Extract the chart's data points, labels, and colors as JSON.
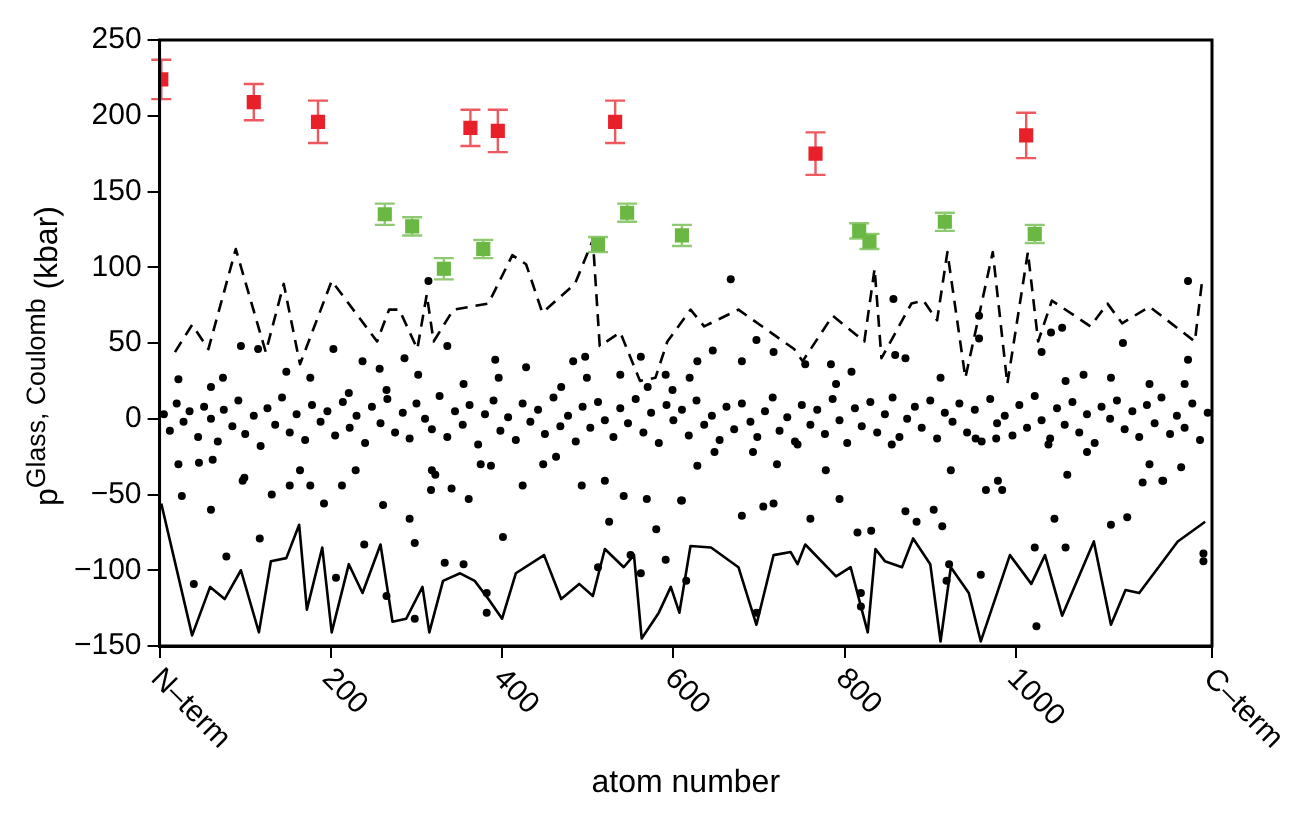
{
  "chart_data": {
    "type": "scatter",
    "xlabel": "atom number",
    "ylabel": "p$^{Glass, Coulomb}$ (kbar)",
    "xlim": [
      0,
      1229
    ],
    "xticks": [
      {
        "value": 0,
        "label": "N–term"
      },
      200,
      400,
      600,
      800,
      1000,
      {
        "value": 1229,
        "label": "C–term"
      }
    ],
    "ylim": [
      -150,
      250
    ],
    "yticks": [
      {
        "value": -150,
        "label": "−150"
      },
      {
        "value": -100,
        "label": "−100"
      },
      {
        "value": -50,
        "label": "−50"
      },
      0,
      50,
      100,
      150,
      200,
      250
    ],
    "legend": false,
    "series": [
      {
        "type": "scatter",
        "marker": "circle",
        "color": "#000000",
        "x": [
          95,
          115,
          148,
          203,
          237,
          257,
          286,
          314,
          336,
          392,
          428,
          483,
          497,
          538,
          562,
          591,
          26,
          60,
          97,
          131,
          152,
          176,
          192,
          213,
          261,
          292,
          317,
          341,
          361,
          424,
          493,
          520,
          542,
          569,
          609,
          40,
          78,
          117,
          206,
          239,
          265,
          298,
          298,
          333,
          355,
          382,
          382,
          401,
          512,
          525,
          550,
          562,
          580,
          591,
          22,
          46,
          62,
          99,
          164,
          229,
          318,
          322,
          375,
          387,
          448,
          463,
          22,
          60,
          74,
          176,
          221,
          265,
          302,
          355,
          396,
          469,
          499,
          570,
          599,
          667,
          697,
          680,
          717,
          754,
          784,
          808,
          857,
          859,
          871,
          957,
          957,
          1030,
          1041,
          1054,
          1125,
          1201,
          1201,
          628,
          646,
          619,
          790,
          912,
          1058,
          1079,
          1111,
          1156,
          1197,
          610,
          680,
          705,
          717,
          760,
          794,
          815,
          831,
          871,
          884,
          904,
          914,
          965,
          979,
          984,
          1022,
          1045,
          1060,
          1058,
          1111,
          1130,
          1148,
          1171,
          1193,
          1219,
          1219,
          1024,
          959,
          922,
          919,
          819,
          819,
          697,
          615,
          628,
          648,
          693,
          721,
          745,
          778,
          855,
          924,
          953,
          977,
          1038,
          1083,
          1156,
          1172,
          5,
          12,
          20,
          28,
          35,
          45,
          52,
          60,
          68,
          75,
          85,
          92,
          100,
          110,
          118,
          126,
          135,
          143,
          152,
          160,
          170,
          178,
          188,
          196,
          205,
          214,
          222,
          230,
          240,
          248,
          258,
          266,
          275,
          284,
          292,
          300,
          310,
          318,
          327,
          336,
          345,
          354,
          362,
          372,
          380,
          390,
          398,
          407,
          416,
          424,
          433,
          442,
          450,
          460,
          468,
          477,
          486,
          494,
          503,
          512,
          520,
          530,
          538,
          547,
          556,
          565,
          574,
          583,
          592,
          600,
          610,
          618,
          627,
          636,
          645,
          654,
          662,
          671,
          680,
          690,
          698,
          707,
          716,
          724,
          733,
          742,
          750,
          760,
          768,
          777,
          786,
          794,
          803,
          812,
          820,
          830,
          838,
          847,
          856,
          864,
          873,
          882,
          890,
          900,
          908,
          917,
          926,
          934,
          943,
          952,
          960,
          970,
          978,
          987,
          996,
          1004,
          1013,
          1022,
          1030,
          1040,
          1048,
          1057,
          1066,
          1074,
          1083,
          1092,
          1100,
          1110,
          1118,
          1127,
          1136,
          1144,
          1153,
          1162,
          1170,
          1180,
          1188,
          1197,
          1206,
          1215,
          1224
        ],
        "values": [
          48,
          46,
          31,
          46,
          38,
          33,
          40,
          91,
          48,
          39,
          34,
          38,
          41,
          29,
          41,
          29,
          -51,
          -60,
          -41,
          -50,
          -44,
          -44,
          -56,
          -44,
          -57,
          -66,
          -47,
          -46,
          -53,
          -44,
          -44,
          -41,
          -51,
          -53,
          -54,
          -109,
          -91,
          -79,
          -105,
          -83,
          -117,
          -82,
          -132,
          -95,
          -96,
          -115,
          -128,
          -78,
          -98,
          -68,
          -90,
          -102,
          -73,
          -93,
          -30,
          -29,
          -27,
          -39,
          -34,
          -34,
          -34,
          -37,
          -30,
          -31,
          -30,
          -25,
          26,
          21,
          27,
          27,
          17,
          19,
          29,
          23,
          27,
          21,
          27,
          21,
          19,
          92,
          52,
          38,
          44,
          36,
          36,
          31,
          79,
          42,
          40,
          68,
          53,
          44,
          57,
          60,
          50,
          91,
          39,
          38,
          45,
          27,
          23,
          27,
          25,
          29,
          27,
          23,
          23,
          -54,
          -64,
          -58,
          -56,
          -66,
          -53,
          -75,
          -74,
          -61,
          -68,
          -60,
          -71,
          -47,
          -41,
          -47,
          -85,
          -66,
          -37,
          -85,
          -70,
          -65,
          -42,
          -41,
          -32,
          -89,
          -94,
          -137,
          -103,
          -96,
          -107,
          -115,
          -124,
          -128,
          -107,
          -31,
          -22,
          -22,
          -30,
          -17,
          -34,
          -17,
          -34,
          -13,
          -13,
          -17,
          -22,
          -30,
          -41,
          3,
          -8,
          10,
          -2,
          5,
          -12,
          8,
          0,
          -15,
          6,
          -5,
          12,
          -10,
          2,
          -18,
          7,
          -4,
          14,
          -9,
          3,
          -14,
          9,
          -2,
          5,
          -11,
          11,
          -6,
          2,
          -16,
          8,
          -3,
          13,
          -9,
          4,
          -13,
          10,
          0,
          -7,
          15,
          -12,
          5,
          -4,
          9,
          -17,
          3,
          12,
          -8,
          1,
          -14,
          10,
          -2,
          6,
          -10,
          14,
          -5,
          2,
          -15,
          8,
          -6,
          11,
          -1,
          -12,
          7,
          -3,
          13,
          -9,
          4,
          -16,
          9,
          -1,
          6,
          -11,
          12,
          -4,
          2,
          -14,
          8,
          -7,
          10,
          -2,
          -12,
          5,
          14,
          -8,
          1,
          -15,
          9,
          -4,
          6,
          -10,
          13,
          -1,
          -16,
          7,
          -5,
          11,
          -9,
          3,
          14,
          -12,
          0,
          8,
          -6,
          12,
          -13,
          4,
          -2,
          10,
          -9,
          6,
          -15,
          13,
          -3,
          2,
          -11,
          9,
          -6,
          15,
          -1,
          -13,
          7,
          -4,
          11,
          -9,
          3,
          -16,
          8,
          0,
          12,
          -7,
          5,
          -12,
          9,
          -3,
          14,
          -10,
          2,
          -6,
          10,
          -14,
          4
        ]
      },
      {
        "type": "line",
        "marker": "none",
        "line_style": "dashed",
        "color": "#000000",
        "x": [
          18,
          38,
          57,
          89,
          124,
          145,
          164,
          201,
          254,
          268,
          280,
          301,
          312,
          320,
          343,
          384,
          412,
          428,
          447,
          485,
          506,
          514,
          538,
          561,
          579,
          593,
          620,
          636,
          676,
          741,
          751,
          786,
          823,
          835,
          843,
          878,
          892,
          908,
          920,
          941,
          973,
          990,
          1014,
          1026,
          1042,
          1087,
          1107,
          1124,
          1156,
          1209,
          1217
        ],
        "values": [
          44,
          62,
          46,
          112,
          44,
          89,
          36,
          91,
          51,
          72,
          72,
          46,
          82,
          51,
          72,
          76,
          108,
          102,
          70,
          89,
          118,
          48,
          57,
          25,
          27,
          51,
          72,
          61,
          72,
          46,
          38,
          68,
          51,
          99,
          40,
          76,
          78,
          65,
          110,
          27,
          110,
          23,
          110,
          51,
          78,
          61,
          76,
          63,
          74,
          51,
          89
        ]
      },
      {
        "type": "line",
        "marker": "none",
        "line_style": "solid",
        "color": "#000000",
        "x": [
          2,
          38,
          59,
          76,
          95,
          116,
          130,
          148,
          163,
          172,
          190,
          201,
          221,
          237,
          258,
          272,
          288,
          307,
          315,
          331,
          351,
          368,
          384,
          400,
          416,
          449,
          469,
          490,
          506,
          520,
          542,
          554,
          563,
          583,
          597,
          607,
          620,
          644,
          676,
          697,
          717,
          737,
          745,
          754,
          790,
          807,
          827,
          836,
          847,
          867,
          880,
          900,
          912,
          924,
          945,
          959,
          993,
          1018,
          1034,
          1054,
          1091,
          1111,
          1128,
          1144,
          1189,
          1221
        ],
        "values": [
          -56,
          -143,
          -111,
          -119,
          -100,
          -141,
          -94,
          -92,
          -70,
          -126,
          -85,
          -141,
          -96,
          -115,
          -83,
          -134,
          -132,
          -111,
          -141,
          -107,
          -102,
          -107,
          -119,
          -132,
          -102,
          -90,
          -119,
          -109,
          -117,
          -86,
          -98,
          -90,
          -145,
          -128,
          -111,
          -128,
          -84,
          -85,
          -98,
          -136,
          -90,
          -88,
          -96,
          -83,
          -104,
          -98,
          -141,
          -86,
          -94,
          -98,
          -79,
          -96,
          -147,
          -98,
          -115,
          -147,
          -90,
          -109,
          -90,
          -130,
          -81,
          -136,
          -113,
          -115,
          -81,
          -68
        ]
      },
      {
        "type": "scatter",
        "marker": "square",
        "color": "#e8202a",
        "x": [
          2,
          110,
          185,
          363,
          395,
          532,
          766,
          1012
        ],
        "values": [
          224,
          209,
          196,
          192,
          190,
          196,
          175,
          187
        ],
        "errors": [
          13,
          12,
          14,
          12,
          14,
          14,
          14,
          15
        ]
      },
      {
        "type": "scatter",
        "marker": "square",
        "color": "#6ab843",
        "x": [
          263,
          295,
          332,
          378,
          512,
          546,
          610,
          817,
          829,
          917,
          1022
        ],
        "values": [
          135,
          127,
          99,
          112,
          115,
          136,
          121,
          124,
          117,
          130,
          122
        ],
        "errors": [
          7,
          6,
          7,
          6,
          5,
          6,
          7,
          5,
          5,
          6,
          6
        ]
      }
    ]
  }
}
